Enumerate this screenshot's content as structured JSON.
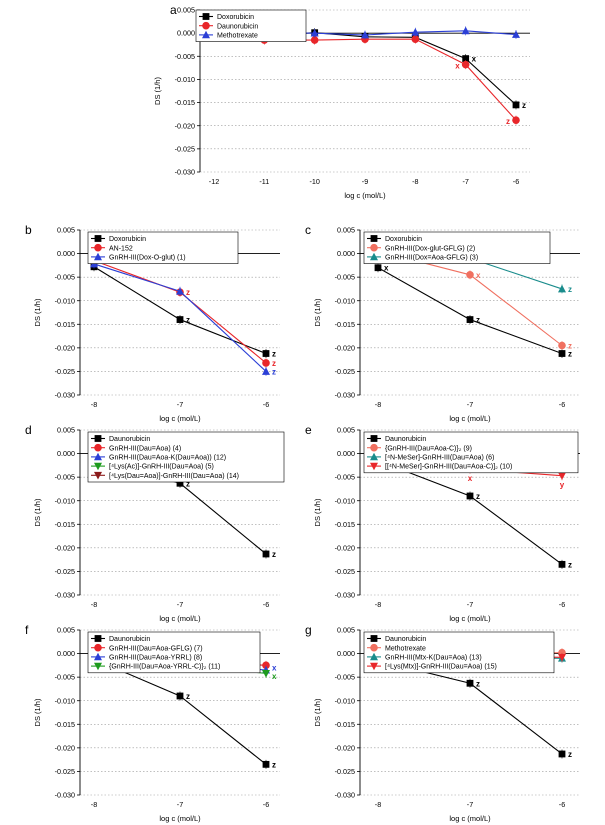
{
  "chart_data": [
    {
      "panel": "a",
      "type": "line",
      "x": [
        -12,
        -11,
        -10,
        -9,
        -8,
        -7,
        -6
      ],
      "xticks": [
        "-12",
        "-11",
        "-10",
        "-9",
        "-8",
        "-7",
        "-6"
      ],
      "xlabel": "log c (mol/L)",
      "ylabel": "DS (1/h)",
      "ylim": [
        -0.03,
        0.005
      ],
      "yticks": [
        "0.005",
        "0.000",
        "-0.005",
        "-0.010",
        "-0.015",
        "-0.020",
        "-0.025",
        "-0.030"
      ],
      "legend_position": "top-left",
      "series": [
        {
          "name": "Doxorubicin",
          "color": "#000000",
          "marker": "square",
          "values": [
            0.0,
            -0.0005,
            0.0001,
            -0.0008,
            -0.0009,
            -0.0055,
            -0.0155
          ]
        },
        {
          "name": "Daunorubicin",
          "color": "#e8262a",
          "marker": "circle",
          "values": [
            -0.0008,
            -0.0015,
            -0.0015,
            -0.0013,
            -0.0013,
            -0.0068,
            -0.0188
          ]
        },
        {
          "name": "Methotrexate",
          "color": "#2b3fd6",
          "marker": "triangle-up",
          "values": [
            0.0003,
            0.0001,
            0.0,
            -0.0004,
            0.0002,
            0.0005,
            -0.0003
          ]
        }
      ],
      "annotations": [
        {
          "text": "x",
          "x": -7,
          "y": -0.0055,
          "color": "#000000"
        },
        {
          "text": "x",
          "x": -7,
          "y": -0.007,
          "color": "#e8262a",
          "side": "left"
        },
        {
          "text": "z",
          "x": -6,
          "y": -0.0155,
          "color": "#000000"
        },
        {
          "text": "z",
          "x": -6,
          "y": -0.019,
          "color": "#e8262a",
          "side": "left"
        }
      ]
    },
    {
      "panel": "b",
      "type": "line",
      "x": [
        -8,
        -7,
        -6
      ],
      "xticks": [
        "-8",
        "-7",
        "-6"
      ],
      "xlabel": "log c (mol/L)",
      "ylabel": "DS (1/h)",
      "ylim": [
        -0.03,
        0.005
      ],
      "yticks": [
        "0.005",
        "0.000",
        "-0.005",
        "-0.010",
        "-0.015",
        "-0.020",
        "-0.025",
        "-0.030"
      ],
      "legend_position": "top-left",
      "series": [
        {
          "name": "Doxorubicin",
          "color": "#000000",
          "marker": "square",
          "values": [
            -0.0028,
            -0.014,
            -0.0212
          ]
        },
        {
          "name": "AN-152",
          "color": "#e8262a",
          "marker": "circle",
          "values": [
            -0.0015,
            -0.0082,
            -0.0232
          ]
        },
        {
          "name": "GnRH-III(Dox-O-glut) (1)",
          "color": "#2b3fd6",
          "marker": "triangle-up",
          "values": [
            -0.0022,
            -0.008,
            -0.025
          ]
        }
      ],
      "annotations": [
        {
          "text": "z",
          "x": -7,
          "y": -0.014,
          "color": "#000000"
        },
        {
          "text": "z",
          "x": -7,
          "y": -0.0082,
          "color": "#e8262a"
        },
        {
          "text": "z",
          "x": -6,
          "y": -0.0212,
          "color": "#000000"
        },
        {
          "text": "z",
          "x": -6,
          "y": -0.0232,
          "color": "#e8262a"
        },
        {
          "text": "z",
          "x": -6,
          "y": -0.025,
          "color": "#2b3fd6"
        }
      ]
    },
    {
      "panel": "c",
      "type": "line",
      "x": [
        -8,
        -7,
        -6
      ],
      "xticks": [
        "-8",
        "-7",
        "-6"
      ],
      "xlabel": "log c (mol/L)",
      "ylabel": "DS (1/h)",
      "ylim": [
        -0.03,
        0.005
      ],
      "yticks": [
        "0.005",
        "0.000",
        "-0.005",
        "-0.010",
        "-0.015",
        "-0.020",
        "-0.025",
        "-0.030"
      ],
      "legend_position": "top-left",
      "series": [
        {
          "name": "Doxorubicin",
          "color": "#000000",
          "marker": "square",
          "values": [
            -0.003,
            -0.014,
            -0.0212
          ]
        },
        {
          "name": "GnRH-III(Dox-glut-GFLG) (2)",
          "color": "#f07060",
          "marker": "circle",
          "values": [
            0.0005,
            -0.0045,
            -0.0195
          ]
        },
        {
          "name": "GnRH-III(Dox=Aoa-GFLG) (3)",
          "color": "#1a8c8c",
          "marker": "triangle-up",
          "values": [
            0.002,
            -0.001,
            -0.0075
          ]
        }
      ],
      "annotations": [
        {
          "text": "x",
          "x": -8,
          "y": -0.003,
          "color": "#000000"
        },
        {
          "text": "x",
          "x": -7,
          "y": -0.0045,
          "color": "#f07060"
        },
        {
          "text": "z",
          "x": -7,
          "y": -0.014,
          "color": "#000000"
        },
        {
          "text": "z",
          "x": -6,
          "y": -0.0075,
          "color": "#1a8c8c"
        },
        {
          "text": "z",
          "x": -6,
          "y": -0.0195,
          "color": "#f07060"
        },
        {
          "text": "z",
          "x": -6,
          "y": -0.0212,
          "color": "#000000"
        }
      ]
    },
    {
      "panel": "d",
      "type": "line",
      "x": [
        -8,
        -7,
        -6
      ],
      "xticks": [
        "-8",
        "-7",
        "-6"
      ],
      "xlabel": "log c (mol/L)",
      "ylabel": "DS (1/h)",
      "ylim": [
        -0.03,
        0.005
      ],
      "yticks": [
        "0.005",
        "0.000",
        "-0.005",
        "-0.010",
        "-0.015",
        "-0.020",
        "-0.025",
        "-0.030"
      ],
      "legend_position": "top-left",
      "series": [
        {
          "name": "Daunorubicin",
          "color": "#000000",
          "marker": "square",
          "values": [
            -0.0015,
            -0.0063,
            -0.0213
          ]
        },
        {
          "name": "GnRH-III(Dau=Aoa) (4)",
          "color": "#e8262a",
          "marker": "circle",
          "values": [
            -0.0005,
            -0.0008,
            -0.0015
          ]
        },
        {
          "name": "GnRH-III(Dau=Aoa-K(Dau=Aoa)) (12)",
          "color": "#2b3fd6",
          "marker": "triangle-up",
          "values": [
            -0.0003,
            -0.0006,
            -0.001
          ]
        },
        {
          "name": "[⁴Lys(Ac)]-GnRH-III(Dau=Aoa) (5)",
          "color": "#1e9b1e",
          "marker": "triangle-down",
          "values": [
            0.0002,
            -0.0008,
            -0.003
          ]
        },
        {
          "name": "[⁴Lys(Dau=Aoa)]-GnRH-III(Dau=Aoa) (14)",
          "color": "#8b1a1a",
          "marker": "triangle-down",
          "values": [
            -0.001,
            -0.001,
            -0.002
          ]
        }
      ],
      "annotations": [
        {
          "text": "z",
          "x": -7,
          "y": -0.0063,
          "color": "#000000"
        },
        {
          "text": "x",
          "x": -6,
          "y": -0.003,
          "color": "#1e9b1e"
        },
        {
          "text": "z",
          "x": -6,
          "y": -0.0213,
          "color": "#000000"
        }
      ]
    },
    {
      "panel": "e",
      "type": "line",
      "x": [
        -8,
        -7,
        -6
      ],
      "xticks": [
        "-8",
        "-7",
        "-6"
      ],
      "xlabel": "log c (mol/L)",
      "ylabel": "DS (1/h)",
      "ylim": [
        -0.03,
        0.005
      ],
      "yticks": [
        "0.005",
        "0.000",
        "-0.005",
        "-0.010",
        "-0.015",
        "-0.020",
        "-0.025",
        "-0.030"
      ],
      "legend_position": "top-left",
      "series": [
        {
          "name": "Daunorubicin",
          "color": "#000000",
          "marker": "square",
          "values": [
            -0.0015,
            -0.009,
            -0.0235
          ]
        },
        {
          "name": "{GnRH-III(Dau=Aoa-C)}₂ (9)",
          "color": "#f07060",
          "marker": "circle",
          "values": [
            -0.0012,
            -0.0008,
            -0.0012
          ]
        },
        {
          "name": "[⁴N-MeSer]-GnRH-III(Dau=Aoa) (6)",
          "color": "#1a8c8c",
          "marker": "triangle-up",
          "values": [
            -0.0012,
            -0.0015,
            0.0003
          ]
        },
        {
          "name": "[[⁴N-MeSer]-GnRH-III(Dau=Aoa-C)]₂ (10)",
          "color": "#e8262a",
          "marker": "triangle-down",
          "values": [
            -0.0015,
            -0.0033,
            -0.0047
          ]
        }
      ],
      "annotations": [
        {
          "text": "x",
          "x": -7,
          "y": -0.0033,
          "color": "#e8262a",
          "below": true
        },
        {
          "text": "z",
          "x": -7,
          "y": -0.009,
          "color": "#000000"
        },
        {
          "text": "y",
          "x": -6,
          "y": -0.0047,
          "color": "#e8262a",
          "below": true
        },
        {
          "text": "z",
          "x": -6,
          "y": -0.0235,
          "color": "#000000"
        }
      ]
    },
    {
      "panel": "f",
      "type": "line",
      "x": [
        -8,
        -7,
        -6
      ],
      "xticks": [
        "-8",
        "-7",
        "-6"
      ],
      "xlabel": "log c (mol/L)",
      "ylabel": "DS (1/h)",
      "ylim": [
        -0.03,
        0.005
      ],
      "yticks": [
        "0.005",
        "0.000",
        "-0.005",
        "-0.010",
        "-0.015",
        "-0.020",
        "-0.025",
        "-0.030"
      ],
      "legend_position": "top-left",
      "series": [
        {
          "name": "Daunorubicin",
          "color": "#000000",
          "marker": "square",
          "values": [
            -0.0012,
            -0.009,
            -0.0235
          ]
        },
        {
          "name": "GnRH-III(Dau=Aoa-GFLG) (7)",
          "color": "#e8262a",
          "marker": "circle",
          "values": [
            0.0002,
            -0.0015,
            -0.0025
          ]
        },
        {
          "name": "GnRH-III(Dau=Aoa-YRRL) (8)",
          "color": "#2b3fd6",
          "marker": "triangle-up",
          "values": [
            -0.0008,
            -0.002,
            -0.0035
          ]
        },
        {
          "name": "{GnRH-III(Dau=Aoa-YRRL-C)}₂ (11)",
          "color": "#1e9b1e",
          "marker": "triangle-down",
          "values": [
            -0.001,
            -0.0025,
            -0.0042
          ]
        }
      ],
      "annotations": [
        {
          "text": "z",
          "x": -7,
          "y": -0.009,
          "color": "#000000"
        },
        {
          "text": "x",
          "x": -6,
          "y": -0.003,
          "color": "#2b3fd6"
        },
        {
          "text": "x",
          "x": -6,
          "y": -0.0048,
          "color": "#1e9b1e"
        },
        {
          "text": "z",
          "x": -6,
          "y": -0.0235,
          "color": "#000000"
        }
      ]
    },
    {
      "panel": "g",
      "type": "line",
      "x": [
        -8,
        -7,
        -6
      ],
      "xticks": [
        "-8",
        "-7",
        "-6"
      ],
      "xlabel": "log c (mol/L)",
      "ylabel": "DS (1/h)",
      "ylim": [
        -0.03,
        0.005
      ],
      "yticks": [
        "0.005",
        "0.000",
        "-0.005",
        "-0.010",
        "-0.015",
        "-0.020",
        "-0.025",
        "-0.030"
      ],
      "legend_position": "top-left",
      "series": [
        {
          "name": "Daunorubicin",
          "color": "#000000",
          "marker": "square",
          "values": [
            -0.0015,
            -0.0063,
            -0.0213
          ]
        },
        {
          "name": "Methotrexate",
          "color": "#f07060",
          "marker": "circle",
          "values": [
            0.002,
            -0.0002,
            0.0002
          ]
        },
        {
          "name": "GnRH-III(Mtx-K(Dau=Aoa) (13)",
          "color": "#1a8c8c",
          "marker": "triangle-up",
          "values": [
            -0.001,
            -0.0008,
            -0.001
          ]
        },
        {
          "name": "[⁴Lys(Mtx)]-GnRH-III(Dau=Aoa) (15)",
          "color": "#e8262a",
          "marker": "triangle-down",
          "values": [
            -0.001,
            -0.0005,
            -0.0008
          ]
        }
      ],
      "annotations": [
        {
          "text": "z",
          "x": -7,
          "y": -0.0063,
          "color": "#000000"
        },
        {
          "text": "z",
          "x": -6,
          "y": -0.0213,
          "color": "#000000"
        }
      ]
    }
  ]
}
